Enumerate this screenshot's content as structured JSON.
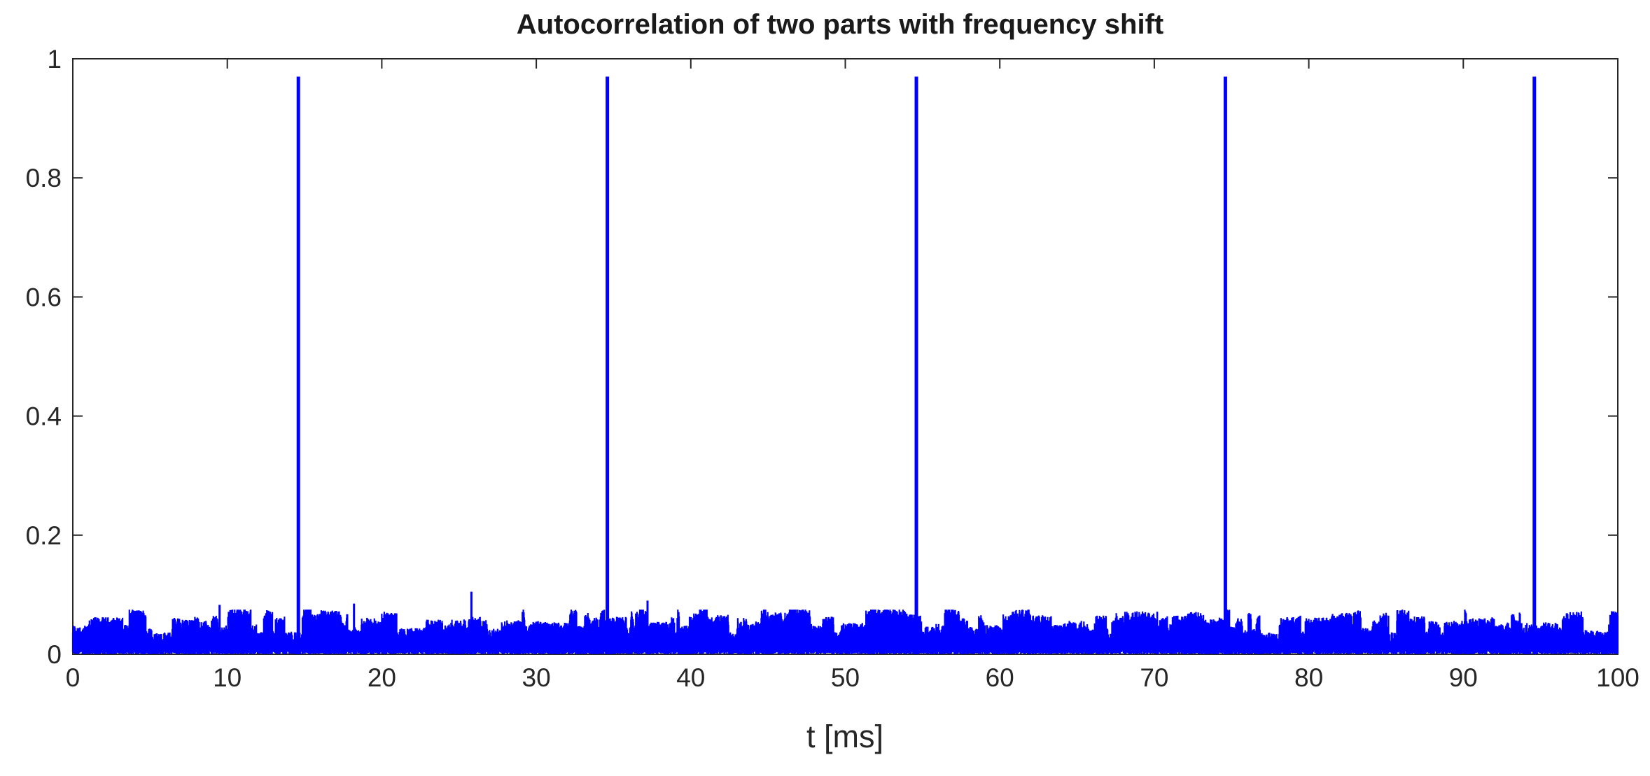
{
  "chart_data": {
    "type": "line",
    "title": "Autocorrelation of two parts with frequency shift",
    "xlabel": "t [ms]",
    "ylabel": "",
    "xlim": [
      0,
      100
    ],
    "ylim": [
      0,
      1
    ],
    "x_ticks": [
      "0",
      "10",
      "20",
      "30",
      "40",
      "50",
      "60",
      "70",
      "80",
      "90",
      "100"
    ],
    "y_ticks": [
      "0",
      "0.2",
      "0.4",
      "0.6",
      "0.8",
      "1"
    ],
    "grid": false,
    "legend": "none",
    "series": [
      {
        "color": "#0000ff",
        "noise_floor": {
          "x_range": [
            0,
            100
          ],
          "typical_envelope": [
            0.01,
            0.07
          ]
        },
        "peaks": [
          {
            "x": 14.6,
            "y": 0.97
          },
          {
            "x": 34.6,
            "y": 0.97
          },
          {
            "x": 54.6,
            "y": 0.97
          },
          {
            "x": 74.6,
            "y": 0.97
          },
          {
            "x": 94.6,
            "y": 0.97
          }
        ],
        "minor_peaks": [
          {
            "x": 25.8,
            "y": 0.105
          },
          {
            "x": 37.2,
            "y": 0.09
          },
          {
            "x": 18.2,
            "y": 0.085
          },
          {
            "x": 9.5,
            "y": 0.083
          }
        ]
      }
    ]
  }
}
